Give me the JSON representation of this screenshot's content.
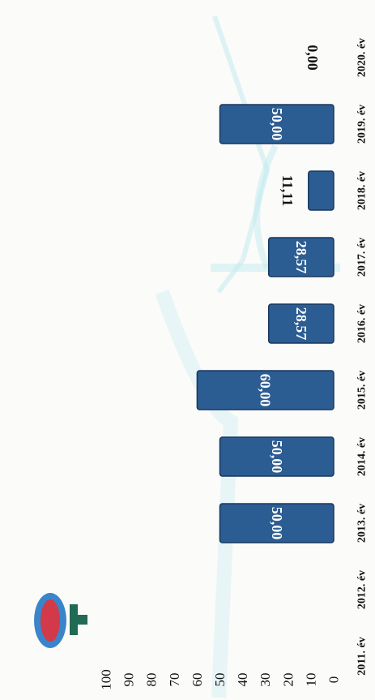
{
  "colors": {
    "bar_fill": "#2c5d92",
    "bar_edge": "#17365e",
    "bar_text": "#ffffff",
    "axis_text": "#111111",
    "watermark": "#8cdce8",
    "logo_red": "#d23a4a",
    "logo_blue": "#3a84c9",
    "logo_green": "#1f6b53"
  },
  "logo_icon": "crest-icon",
  "chart_data": {
    "type": "bar",
    "orientation": "rotated-180",
    "title": "",
    "xlabel": "",
    "ylabel": "",
    "ylim": [
      0,
      100
    ],
    "yticks": [
      0,
      10,
      20,
      30,
      40,
      50,
      60,
      70,
      80,
      90,
      100
    ],
    "grid": false,
    "legend": "none",
    "categories": [
      "2011. év",
      "2012. év",
      "2013. év",
      "2014. év",
      "2015. év",
      "2016. év",
      "2017. év",
      "2018. év",
      "2019. év",
      "2020. év"
    ],
    "values": [
      null,
      null,
      50.0,
      50.0,
      60.0,
      28.57,
      28.57,
      11.11,
      50.0,
      0.0
    ],
    "data_labels": [
      "",
      "",
      "50,00",
      "50,00",
      "60,00",
      "28,57",
      "28,57",
      "11,11",
      "50,00",
      "0,00"
    ]
  }
}
